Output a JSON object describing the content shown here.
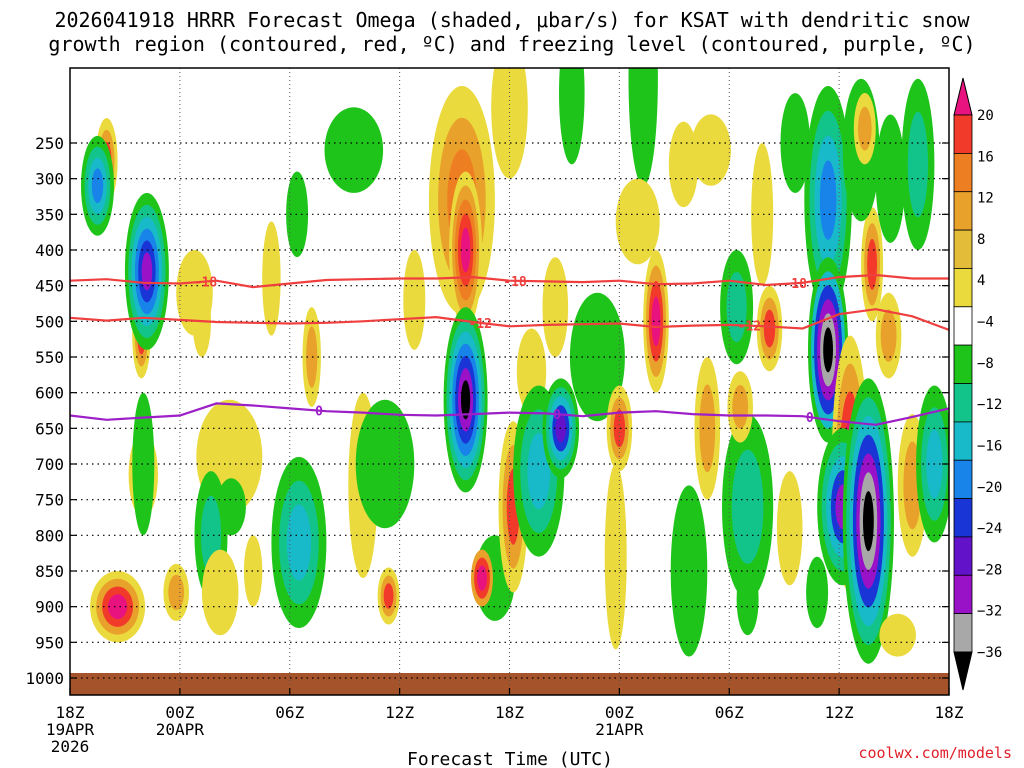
{
  "title_line1": "2026041918 HRRR Forecast Omega (shaded, μbar/s) for KSAT with dendritic snow",
  "title_line2": "growth region (contoured, red, ºC) and freezing level (contoured, purple, ºC)",
  "credit": "coolwx.com/models",
  "chart_data": {
    "type": "heatmap",
    "title": "2026041918 HRRR Forecast Omega (shaded, μbar/s) for KSAT with dendritic snow growth region (contoured, red, ºC) and freezing level (contoured, purple, ºC)",
    "xlabel": "Forecast Time (UTC)",
    "ylabel": "",
    "x_range_hours": [
      0,
      48
    ],
    "y_range_hpa": [
      200,
      1000
    ],
    "y_ticks": [
      250,
      300,
      350,
      400,
      450,
      500,
      550,
      600,
      650,
      700,
      750,
      800,
      850,
      900,
      950,
      1000
    ],
    "x_ticks": [
      {
        "hour": 0,
        "lines": [
          "18Z",
          "19APR",
          "2026"
        ]
      },
      {
        "hour": 6,
        "lines": [
          "00Z",
          "20APR"
        ]
      },
      {
        "hour": 12,
        "lines": [
          "06Z"
        ]
      },
      {
        "hour": 18,
        "lines": [
          "12Z"
        ]
      },
      {
        "hour": 24,
        "lines": [
          "18Z"
        ]
      },
      {
        "hour": 30,
        "lines": [
          "00Z",
          "21APR"
        ]
      },
      {
        "hour": 36,
        "lines": [
          "06Z"
        ]
      },
      {
        "hour": 42,
        "lines": [
          "12Z"
        ]
      },
      {
        "hour": 48,
        "lines": [
          "18Z"
        ]
      }
    ],
    "colorbar": {
      "labels": [
        "20",
        "16",
        "12",
        "8",
        "4",
        "−4",
        "−8",
        "−12",
        "−16",
        "−20",
        "−24",
        "−28",
        "−32",
        "−36"
      ],
      "colors": [
        "#e8137e",
        "#f23a2a",
        "#ee7e22",
        "#e8a12a",
        "#e3bd3a",
        "#ebda3e",
        "#ffffff",
        "#1fc41b",
        "#12c48a",
        "#18b9c8",
        "#1883e8",
        "#1a35d6",
        "#6212c8",
        "#9a12c8",
        "#a8a8a8",
        "#000000"
      ]
    },
    "series": [
      {
        "name": "-18 ºC contour",
        "color": "#ef3f3f",
        "label": "-18",
        "x": [
          0,
          2,
          4,
          6,
          8,
          10,
          12,
          14,
          16,
          18,
          20,
          22,
          24,
          26,
          28,
          30,
          32,
          34,
          36,
          38,
          40,
          42,
          44,
          46,
          48
        ],
        "p": [
          443,
          441,
          446,
          447,
          443,
          452,
          447,
          442,
          441,
          440,
          440,
          438,
          443,
          444,
          445,
          443,
          448,
          447,
          443,
          449,
          446,
          438,
          435,
          440,
          440
        ],
        "label_positions": [
          7.4,
          24.3,
          39.6
        ]
      },
      {
        "name": "-12 ºC contour",
        "color": "#ef3f3f",
        "label": "-12",
        "x": [
          0,
          2,
          4,
          6,
          8,
          10,
          12,
          14,
          16,
          18,
          20,
          22,
          24,
          26,
          28,
          30,
          32,
          34,
          36,
          38,
          40,
          42,
          44,
          46,
          48
        ],
        "p": [
          495,
          499,
          495,
          498,
          501,
          502,
          503,
          502,
          500,
          497,
          494,
          501,
          507,
          505,
          504,
          503,
          508,
          506,
          505,
          507,
          510,
          490,
          483,
          493,
          512
        ],
        "label_positions": [
          22.4,
          37.1
        ]
      },
      {
        "name": "0 ºC freezing level",
        "color": "#9c1fc8",
        "label": "0",
        "x": [
          0,
          2,
          4,
          6,
          8,
          10,
          12,
          14,
          16,
          18,
          20,
          22,
          24,
          26,
          28,
          30,
          32,
          34,
          36,
          38,
          40,
          42,
          44,
          46,
          48
        ],
        "p": [
          632,
          638,
          635,
          632,
          615,
          618,
          622,
          626,
          628,
          631,
          632,
          630,
          628,
          629,
          633,
          628,
          626,
          630,
          632,
          632,
          633,
          640,
          645,
          634,
          622
        ],
        "label_positions": [
          13.6,
          26.6,
          40.4
        ]
      }
    ]
  }
}
